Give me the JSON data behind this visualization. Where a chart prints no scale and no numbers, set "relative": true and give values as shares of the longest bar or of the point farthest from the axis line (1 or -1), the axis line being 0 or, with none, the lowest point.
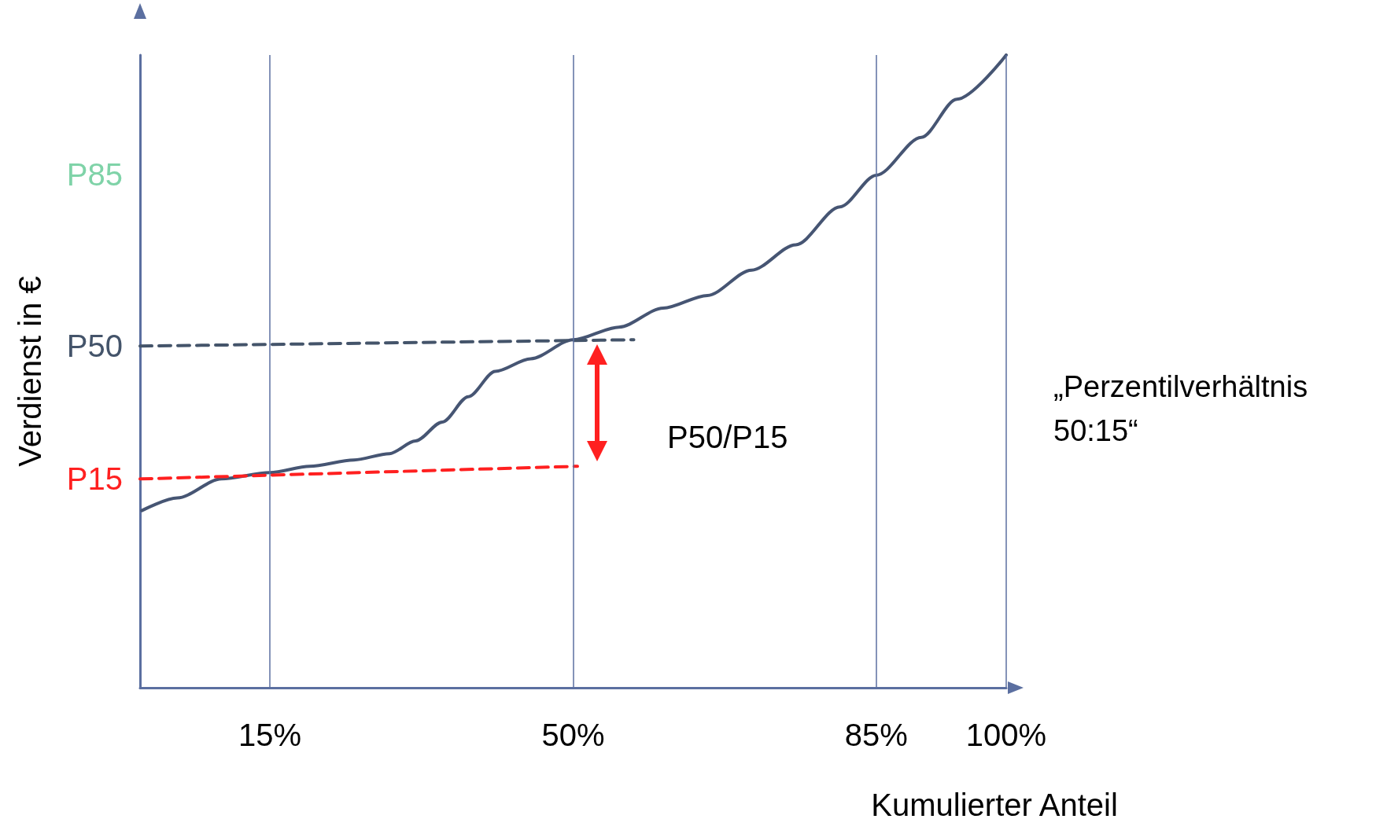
{
  "chart_data": {
    "type": "line",
    "relative": true,
    "xlabel": "Kumulierter Anteil",
    "ylabel": "Verdienst in €",
    "xlim": [
      0,
      100
    ],
    "xticks": [
      {
        "value": 15,
        "label": "15%"
      },
      {
        "value": 50,
        "label": "50%"
      },
      {
        "value": 85,
        "label": "85%"
      },
      {
        "value": 100,
        "label": "100%"
      }
    ],
    "grid": "x",
    "legend": false,
    "marker": "none",
    "series": [
      {
        "color": "#465573",
        "line_style": "solid",
        "x": [
          0.2,
          4.3,
          9.4,
          15,
          19.6,
          24.7,
          28.8,
          31.8,
          34.9,
          37.9,
          41,
          45.1,
          50,
          55.3,
          60.4,
          65.5,
          70.6,
          75.7,
          80.8,
          85,
          90.2,
          94.3,
          100
        ],
        "values": [
          0.28,
          0.3,
          0.33,
          0.34,
          0.35,
          0.36,
          0.37,
          0.39,
          0.42,
          0.46,
          0.5,
          0.52,
          0.55,
          0.57,
          0.6,
          0.62,
          0.66,
          0.7,
          0.76,
          0.81,
          0.87,
          0.93,
          1
        ]
      },
      {
        "name": "P50",
        "color": "#44546a",
        "line_style": "dashed",
        "x": [
          0,
          57
        ],
        "values": [
          0.54,
          0.55
        ]
      },
      {
        "name": "P15",
        "color": "#ff2020",
        "line_style": "dashed",
        "x": [
          0,
          50.5
        ],
        "values": [
          0.33,
          0.35
        ]
      }
    ],
    "annotations": [
      "P85",
      "P50/P15",
      "„Perzentilverhältnis 50:15“"
    ]
  }
}
